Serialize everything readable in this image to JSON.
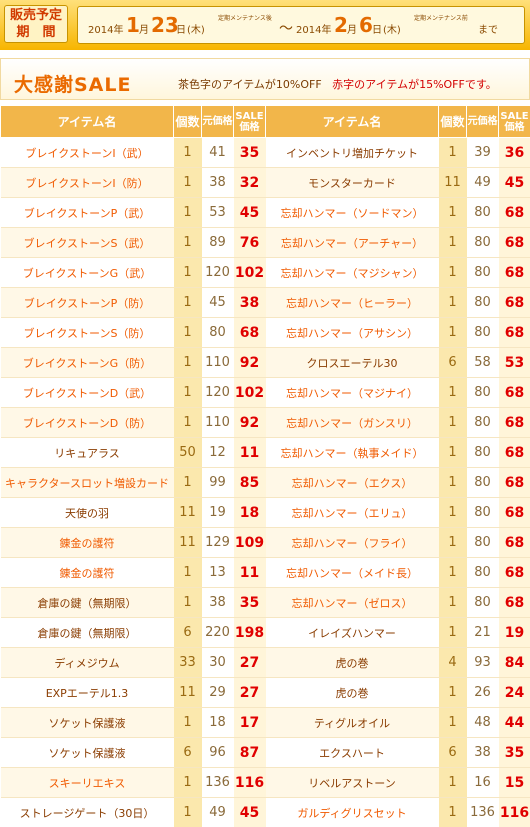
{
  "banner": {
    "label_line1": "販売予定",
    "label_line2": "期　間",
    "start_year": "2014年",
    "start_month": "1",
    "start_month_unit": "月",
    "start_day": "23",
    "start_day_unit": "日",
    "start_weekday": "(木)",
    "start_note": "定期メンテナンス後",
    "tilde": "～",
    "end_year": "2014年",
    "end_month": "2",
    "end_month_unit": "月",
    "end_day": "6",
    "end_day_unit": "日",
    "end_weekday": "(木)",
    "end_note": "定期メンテナンス前",
    "until": "まで"
  },
  "sale": {
    "title": "大感謝SALE",
    "note_part1": "茶色字のアイテムが10%OFF",
    "note_part2": "赤字のアイテムが15%OFFです。"
  },
  "colors": {
    "brown_text": "#8a3c00",
    "orange_text": "#f05a00",
    "sale_red": "#e00000",
    "header_bg": "#f2b64a"
  },
  "table": {
    "headers": {
      "name": "アイテム名",
      "qty": "個数",
      "price": "元価格",
      "sale": "SALE価格"
    },
    "left": [
      {
        "name": "ブレイクストーンI（武）",
        "color": "orange",
        "qty": "1",
        "price": "41",
        "sale": "35"
      },
      {
        "name": "ブレイクストーンI（防）",
        "color": "orange",
        "qty": "1",
        "price": "38",
        "sale": "32"
      },
      {
        "name": "ブレイクストーンP（武）",
        "color": "orange",
        "qty": "1",
        "price": "53",
        "sale": "45"
      },
      {
        "name": "ブレイクストーンS（武）",
        "color": "orange",
        "qty": "1",
        "price": "89",
        "sale": "76"
      },
      {
        "name": "ブレイクストーンG（武）",
        "color": "orange",
        "qty": "1",
        "price": "120",
        "sale": "102"
      },
      {
        "name": "ブレイクストーンP（防）",
        "color": "orange",
        "qty": "1",
        "price": "45",
        "sale": "38"
      },
      {
        "name": "ブレイクストーンS（防）",
        "color": "orange",
        "qty": "1",
        "price": "80",
        "sale": "68"
      },
      {
        "name": "ブレイクストーンG（防）",
        "color": "orange",
        "qty": "1",
        "price": "110",
        "sale": "92"
      },
      {
        "name": "ブレイクストーンD（武）",
        "color": "orange",
        "qty": "1",
        "price": "120",
        "sale": "102"
      },
      {
        "name": "ブレイクストーンD（防）",
        "color": "orange",
        "qty": "1",
        "price": "110",
        "sale": "92"
      },
      {
        "name": "リキュアラス",
        "color": "brown",
        "qty": "50",
        "price": "12",
        "sale": "11"
      },
      {
        "name": "キャラクタースロット増設カード",
        "color": "orange",
        "qty": "1",
        "price": "99",
        "sale": "85"
      },
      {
        "name": "天使の羽",
        "color": "brown",
        "qty": "11",
        "price": "19",
        "sale": "18"
      },
      {
        "name": "錬金の護符",
        "color": "orange",
        "qty": "11",
        "price": "129",
        "sale": "109"
      },
      {
        "name": "錬金の護符",
        "color": "orange",
        "qty": "1",
        "price": "13",
        "sale": "11"
      },
      {
        "name": "倉庫の鍵（無期限）",
        "color": "brown",
        "qty": "1",
        "price": "38",
        "sale": "35"
      },
      {
        "name": "倉庫の鍵（無期限）",
        "color": "brown",
        "qty": "6",
        "price": "220",
        "sale": "198"
      },
      {
        "name": "ディメジウム",
        "color": "brown",
        "qty": "33",
        "price": "30",
        "sale": "27"
      },
      {
        "name": "EXPエーテル1.3",
        "color": "brown",
        "qty": "11",
        "price": "29",
        "sale": "27"
      },
      {
        "name": "ソケット保護液",
        "color": "brown",
        "qty": "1",
        "price": "18",
        "sale": "17"
      },
      {
        "name": "ソケット保護液",
        "color": "brown",
        "qty": "6",
        "price": "96",
        "sale": "87"
      },
      {
        "name": "スキーリエキス",
        "color": "orange",
        "qty": "1",
        "price": "136",
        "sale": "116"
      },
      {
        "name": "ストレージゲート（30日）",
        "color": "brown",
        "qty": "1",
        "price": "49",
        "sale": "45"
      }
    ],
    "right": [
      {
        "name": "インベントリ増加チケット",
        "color": "brown",
        "qty": "1",
        "price": "39",
        "sale": "36"
      },
      {
        "name": "モンスターカード",
        "color": "brown",
        "qty": "11",
        "price": "49",
        "sale": "45"
      },
      {
        "name": "忘却ハンマー（ソードマン）",
        "color": "orange",
        "qty": "1",
        "price": "80",
        "sale": "68"
      },
      {
        "name": "忘却ハンマー（アーチャー）",
        "color": "orange",
        "qty": "1",
        "price": "80",
        "sale": "68"
      },
      {
        "name": "忘却ハンマー（マジシャン）",
        "color": "orange",
        "qty": "1",
        "price": "80",
        "sale": "68"
      },
      {
        "name": "忘却ハンマー（ヒーラー）",
        "color": "orange",
        "qty": "1",
        "price": "80",
        "sale": "68"
      },
      {
        "name": "忘却ハンマー（アサシン）",
        "color": "orange",
        "qty": "1",
        "price": "80",
        "sale": "68"
      },
      {
        "name": "クロスエーテル30",
        "color": "brown",
        "qty": "6",
        "price": "58",
        "sale": "53"
      },
      {
        "name": "忘却ハンマー（マジナイ）",
        "color": "orange",
        "qty": "1",
        "price": "80",
        "sale": "68"
      },
      {
        "name": "忘却ハンマー（ガンスリ）",
        "color": "orange",
        "qty": "1",
        "price": "80",
        "sale": "68"
      },
      {
        "name": "忘却ハンマー（執事メイド）",
        "color": "orange",
        "qty": "1",
        "price": "80",
        "sale": "68"
      },
      {
        "name": "忘却ハンマー（エクス）",
        "color": "orange",
        "qty": "1",
        "price": "80",
        "sale": "68"
      },
      {
        "name": "忘却ハンマー（エリュ）",
        "color": "orange",
        "qty": "1",
        "price": "80",
        "sale": "68"
      },
      {
        "name": "忘却ハンマー（フライ）",
        "color": "orange",
        "qty": "1",
        "price": "80",
        "sale": "68"
      },
      {
        "name": "忘却ハンマー（メイド長）",
        "color": "orange",
        "qty": "1",
        "price": "80",
        "sale": "68"
      },
      {
        "name": "忘却ハンマー（ゼロス）",
        "color": "orange",
        "qty": "1",
        "price": "80",
        "sale": "68"
      },
      {
        "name": "イレイズハンマー",
        "color": "brown",
        "qty": "1",
        "price": "21",
        "sale": "19"
      },
      {
        "name": "虎の巻",
        "color": "brown",
        "qty": "4",
        "price": "93",
        "sale": "84"
      },
      {
        "name": "虎の巻",
        "color": "brown",
        "qty": "1",
        "price": "26",
        "sale": "24"
      },
      {
        "name": "ティグルオイル",
        "color": "brown",
        "qty": "1",
        "price": "48",
        "sale": "44"
      },
      {
        "name": "エクスハート",
        "color": "brown",
        "qty": "6",
        "price": "38",
        "sale": "35"
      },
      {
        "name": "リベルアストーン",
        "color": "brown",
        "qty": "1",
        "price": "16",
        "sale": "15"
      },
      {
        "name": "ガルディグリスセット",
        "color": "orange",
        "qty": "1",
        "price": "136",
        "sale": "116"
      }
    ]
  }
}
